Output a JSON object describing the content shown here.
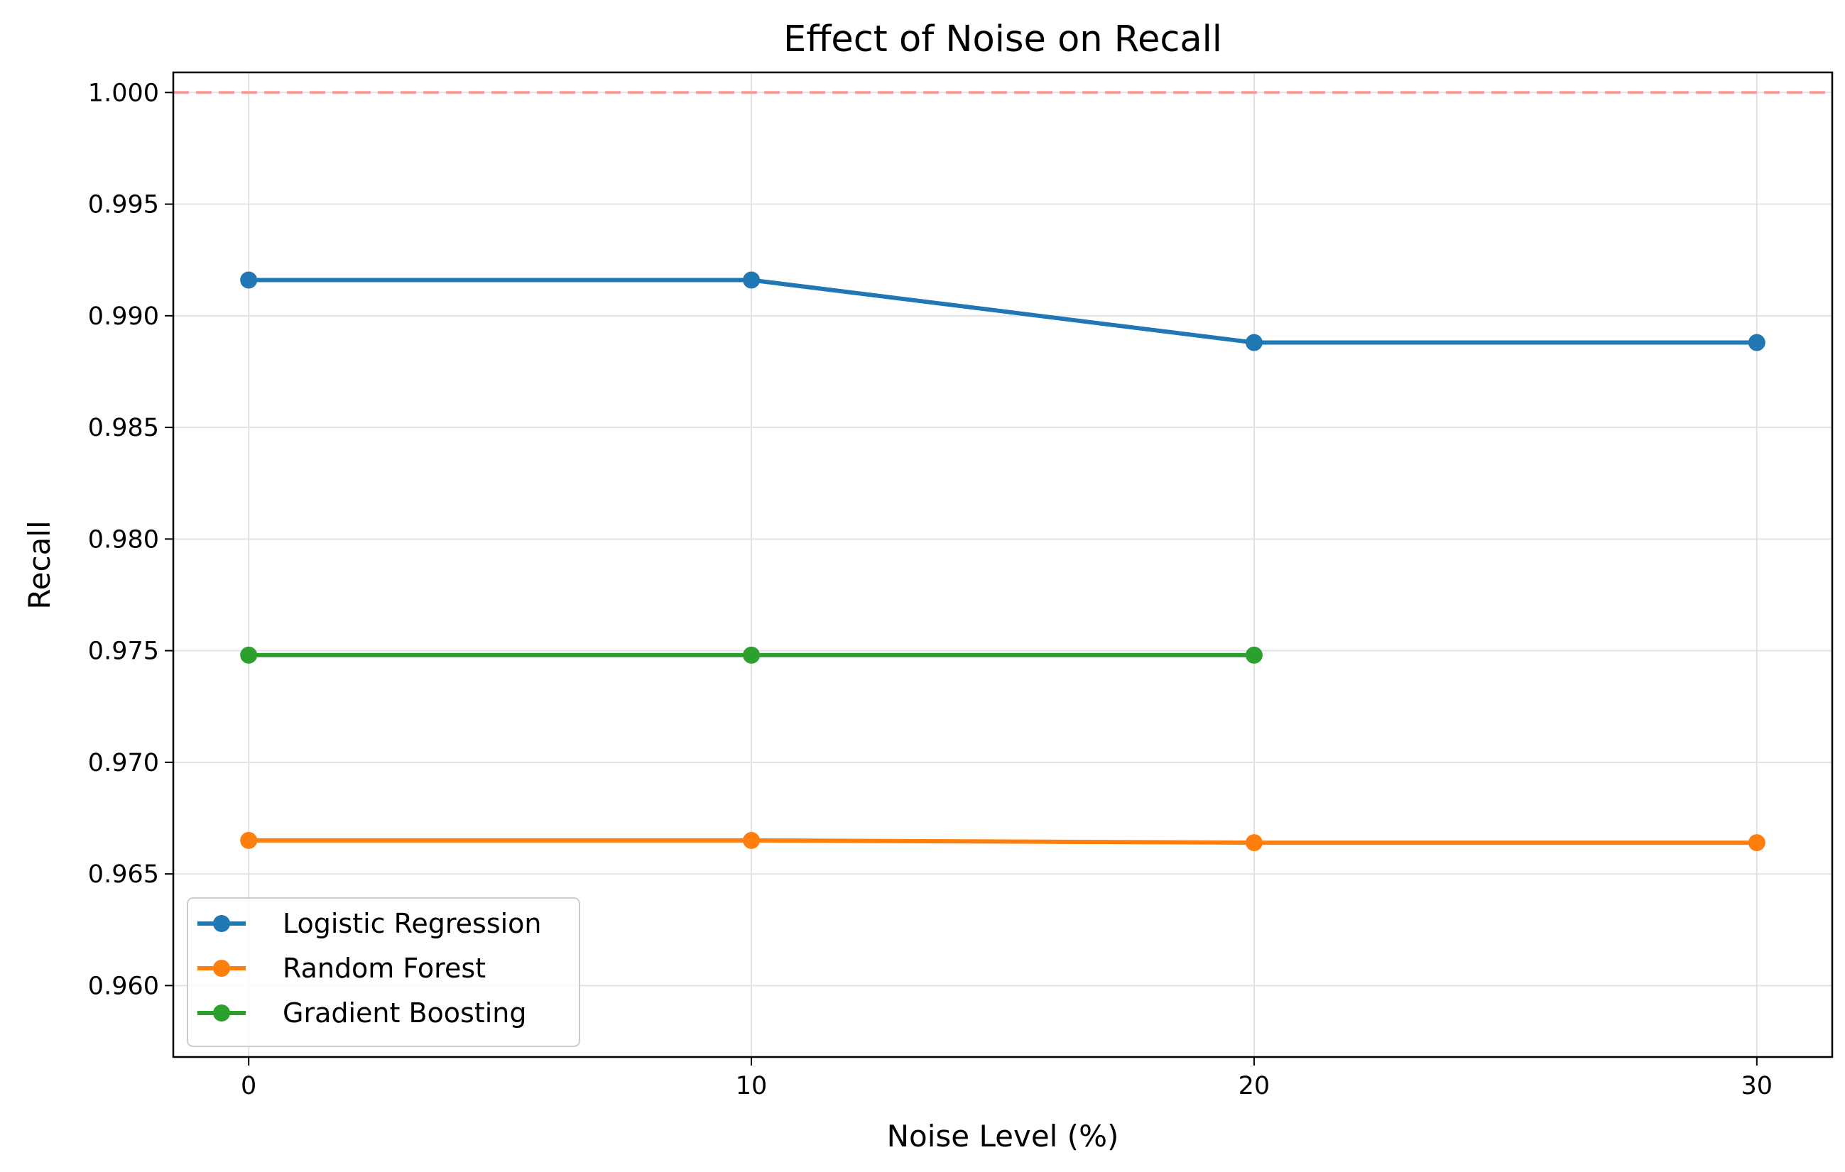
{
  "chart_data": {
    "type": "line",
    "title": "Effect of Noise on Recall",
    "xlabel": "Noise Level (%)",
    "ylabel": "Recall",
    "x": [
      0,
      10,
      20,
      30
    ],
    "xlim": [
      -1.5,
      31.5
    ],
    "ylim": [
      0.9568,
      1.0009
    ],
    "x_ticks": [
      "0",
      "10",
      "20",
      "30"
    ],
    "y_ticks": [
      "0.960",
      "0.965",
      "0.970",
      "0.975",
      "0.980",
      "0.985",
      "0.990",
      "0.995",
      "1.000"
    ],
    "grid": true,
    "legend_position": "lower-left",
    "reference_line": {
      "y": 1.0,
      "style": "dashed",
      "color": "#ff9896"
    },
    "series": [
      {
        "name": "Logistic Regression",
        "color": "#1f77b4",
        "x": [
          0,
          10,
          20,
          30
        ],
        "values": [
          0.9916,
          0.9916,
          0.9888,
          0.9888
        ]
      },
      {
        "name": "Random Forest",
        "color": "#ff7f0e",
        "x": [
          0,
          10,
          20,
          30
        ],
        "values": [
          0.9665,
          0.9665,
          0.9664,
          0.9664
        ]
      },
      {
        "name": "Gradient Boosting",
        "color": "#2ca02c",
        "x": [
          0,
          10,
          20
        ],
        "values": [
          0.9748,
          0.9748,
          0.9748
        ]
      }
    ]
  }
}
